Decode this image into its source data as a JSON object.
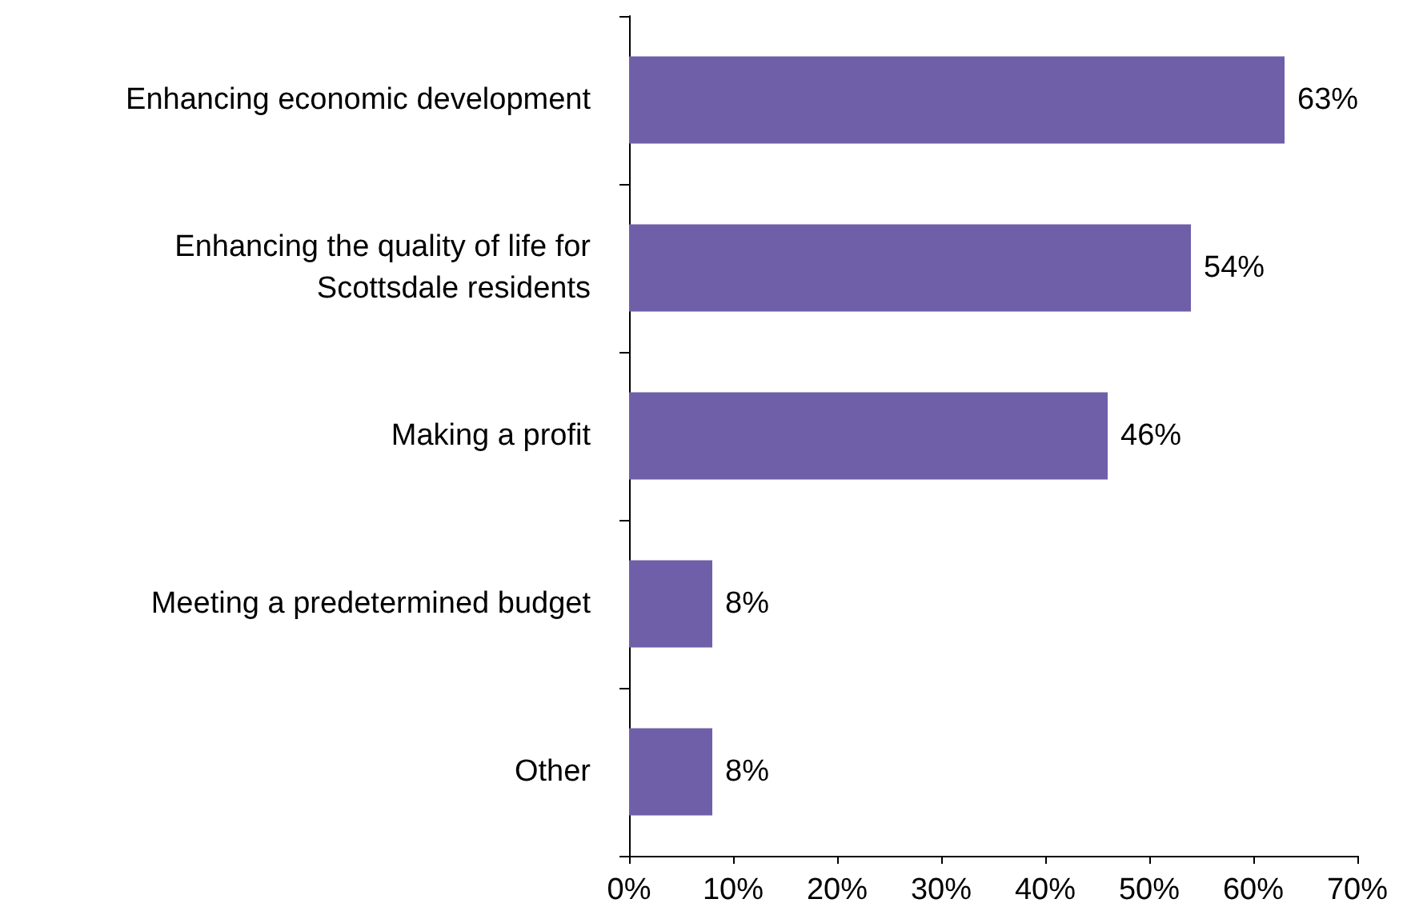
{
  "chart_data": {
    "type": "bar",
    "orientation": "horizontal",
    "categories": [
      "Enhancing economic development",
      "Enhancing the quality of life for\nScottsdale residents",
      "Making a profit",
      "Meeting a predetermined budget",
      "Other"
    ],
    "values": [
      63,
      54,
      46,
      8,
      8
    ],
    "value_labels": [
      "63%",
      "54%",
      "46%",
      "8%",
      "8%"
    ],
    "color": "#6f5fa8",
    "xlim": [
      0,
      70
    ],
    "xticks": [
      {
        "value": 0,
        "label": "0%"
      },
      {
        "value": 10,
        "label": "10%"
      },
      {
        "value": 20,
        "label": "20%"
      },
      {
        "value": 30,
        "label": "30%"
      },
      {
        "value": 40,
        "label": "40%"
      },
      {
        "value": 50,
        "label": "50%"
      },
      {
        "value": 60,
        "label": "60%"
      },
      {
        "value": 70,
        "label": "70%"
      }
    ],
    "grid": false
  }
}
